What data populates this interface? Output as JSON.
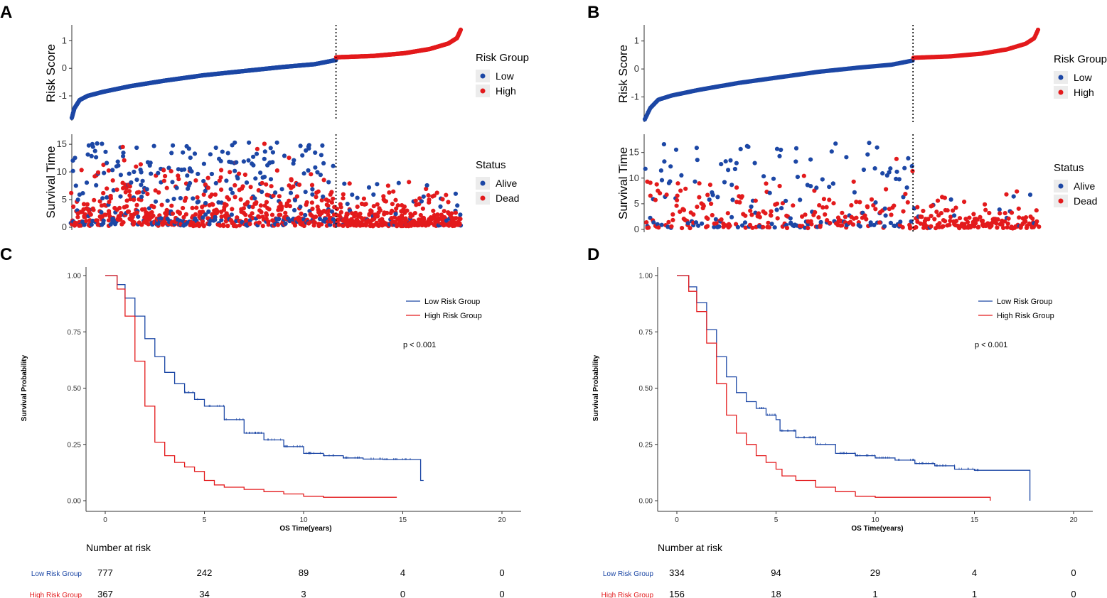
{
  "colors": {
    "low": "#1c47a5",
    "high": "#e31a1c",
    "axis": "#333333"
  },
  "chart_data": [
    {
      "panel": "A",
      "type": "scatter",
      "risk_plot": {
        "ylabel": "Risk Score",
        "yticks": [
          "1",
          "0",
          "-1"
        ],
        "ylim": [
          -1.8,
          1.45
        ],
        "low_n": 777,
        "high_n": 367,
        "low_quantiles": [
          [
            0,
            -1.8
          ],
          [
            0.01,
            -1.45
          ],
          [
            0.03,
            -1.15
          ],
          [
            0.06,
            -1.0
          ],
          [
            0.12,
            -0.85
          ],
          [
            0.22,
            -0.65
          ],
          [
            0.35,
            -0.45
          ],
          [
            0.5,
            -0.25
          ],
          [
            0.65,
            -0.1
          ],
          [
            0.8,
            0.05
          ],
          [
            0.92,
            0.15
          ],
          [
            1,
            0.3
          ]
        ],
        "high_quantiles": [
          [
            0,
            0.4
          ],
          [
            0.3,
            0.45
          ],
          [
            0.55,
            0.55
          ],
          [
            0.75,
            0.7
          ],
          [
            0.9,
            0.9
          ],
          [
            0.97,
            1.1
          ],
          [
            1,
            1.4
          ]
        ],
        "legend_title": "Risk Group",
        "legend": [
          "Low",
          "High"
        ]
      },
      "survival_plot": {
        "ylabel": "Survival Time",
        "yticks": [
          "15",
          "10",
          "5",
          "0"
        ],
        "ylim": [
          0,
          16.3
        ],
        "legend_title": "Status",
        "legend": [
          "Alive",
          "Dead"
        ]
      }
    },
    {
      "panel": "B",
      "type": "scatter",
      "risk_plot": {
        "ylabel": "Risk Score",
        "yticks": [
          "1",
          "0",
          "-1"
        ],
        "ylim": [
          -1.8,
          1.45
        ],
        "low_n": 334,
        "high_n": 156,
        "low_quantiles": [
          [
            0,
            -1.8
          ],
          [
            0.02,
            -1.4
          ],
          [
            0.05,
            -1.1
          ],
          [
            0.1,
            -0.95
          ],
          [
            0.2,
            -0.75
          ],
          [
            0.35,
            -0.5
          ],
          [
            0.5,
            -0.3
          ],
          [
            0.65,
            -0.1
          ],
          [
            0.8,
            0.05
          ],
          [
            0.92,
            0.15
          ],
          [
            1,
            0.3
          ]
        ],
        "high_quantiles": [
          [
            0,
            0.4
          ],
          [
            0.3,
            0.45
          ],
          [
            0.55,
            0.55
          ],
          [
            0.75,
            0.7
          ],
          [
            0.9,
            0.9
          ],
          [
            0.97,
            1.1
          ],
          [
            1,
            1.4
          ]
        ],
        "legend_title": "Risk Group",
        "legend": [
          "Low",
          "High"
        ]
      },
      "survival_plot": {
        "ylabel": "Survival Time",
        "yticks": [
          "15",
          "10",
          "5",
          "0"
        ],
        "ylim": [
          0,
          18
        ],
        "legend_title": "Status",
        "legend": [
          "Alive",
          "Dead"
        ]
      }
    },
    {
      "panel": "C",
      "type": "line",
      "xlabel": "OS Time(years)",
      "ylabel": "Survival Probability",
      "xlim": [
        0,
        20
      ],
      "ylim": [
        0,
        1
      ],
      "xticks": [
        "0",
        "5",
        "10",
        "15",
        "20"
      ],
      "yticks": [
        "0.00",
        "0.25",
        "0.50",
        "0.75",
        "1.00"
      ],
      "series": [
        {
          "name": "Low Risk Group",
          "points": [
            [
              0,
              1
            ],
            [
              0.3,
              1
            ],
            [
              0.6,
              0.96
            ],
            [
              1,
              0.9
            ],
            [
              1.5,
              0.82
            ],
            [
              2,
              0.72
            ],
            [
              2.5,
              0.64
            ],
            [
              3,
              0.57
            ],
            [
              3.5,
              0.52
            ],
            [
              4,
              0.48
            ],
            [
              4.5,
              0.45
            ],
            [
              5,
              0.42
            ],
            [
              6,
              0.36
            ],
            [
              7,
              0.3
            ],
            [
              8,
              0.27
            ],
            [
              9,
              0.24
            ],
            [
              10,
              0.21
            ],
            [
              11,
              0.2
            ],
            [
              12,
              0.19
            ],
            [
              13,
              0.185
            ],
            [
              14,
              0.183
            ],
            [
              15.9,
              0.18
            ],
            [
              15.9,
              0.09
            ],
            [
              16.05,
              0.09
            ]
          ]
        },
        {
          "name": "High Risk Group",
          "points": [
            [
              0,
              1
            ],
            [
              0.3,
              1
            ],
            [
              0.6,
              0.94
            ],
            [
              1,
              0.82
            ],
            [
              1.5,
              0.62
            ],
            [
              2,
              0.42
            ],
            [
              2.5,
              0.26
            ],
            [
              3,
              0.2
            ],
            [
              3.5,
              0.17
            ],
            [
              4,
              0.15
            ],
            [
              4.5,
              0.13
            ],
            [
              5,
              0.09
            ],
            [
              5.5,
              0.07
            ],
            [
              6,
              0.06
            ],
            [
              7,
              0.05
            ],
            [
              8,
              0.04
            ],
            [
              9,
              0.03
            ],
            [
              10,
              0.02
            ],
            [
              11,
              0.015
            ],
            [
              14.7,
              0.015
            ]
          ]
        }
      ],
      "legend": [
        "Low Risk Group",
        "High Risk Group"
      ],
      "annotation": "p < 0.001",
      "risk_table": {
        "title": "Number at risk",
        "times": [
          0,
          5,
          10,
          15,
          20
        ],
        "rows": [
          {
            "label": "Low Risk Group",
            "values": [
              "777",
              "242",
              "89",
              "4",
              "0"
            ]
          },
          {
            "label": "High Risk Group",
            "values": [
              "367",
              "34",
              "3",
              "0",
              "0"
            ]
          }
        ]
      }
    },
    {
      "panel": "D",
      "type": "line",
      "xlabel": "OS Time(years)",
      "ylabel": "Survival Probability",
      "xlim": [
        0,
        20
      ],
      "ylim": [
        0,
        1
      ],
      "xticks": [
        "0",
        "5",
        "10",
        "15",
        "20"
      ],
      "yticks": [
        "0.00",
        "0.25",
        "0.50",
        "0.75",
        "1.00"
      ],
      "series": [
        {
          "name": "Low Risk Group",
          "points": [
            [
              0,
              1
            ],
            [
              0.3,
              1
            ],
            [
              0.6,
              0.95
            ],
            [
              1,
              0.88
            ],
            [
              1.5,
              0.76
            ],
            [
              2,
              0.64
            ],
            [
              2.5,
              0.55
            ],
            [
              3,
              0.48
            ],
            [
              3.5,
              0.44
            ],
            [
              4,
              0.41
            ],
            [
              4.5,
              0.38
            ],
            [
              5,
              0.36
            ],
            [
              5.2,
              0.31
            ],
            [
              6,
              0.28
            ],
            [
              7,
              0.25
            ],
            [
              8,
              0.21
            ],
            [
              9,
              0.2
            ],
            [
              10,
              0.19
            ],
            [
              11,
              0.18
            ],
            [
              12,
              0.165
            ],
            [
              13,
              0.155
            ],
            [
              14,
              0.14
            ],
            [
              15,
              0.135
            ],
            [
              17.8,
              0.135
            ],
            [
              17.8,
              0
            ]
          ]
        },
        {
          "name": "High Risk Group",
          "points": [
            [
              0,
              1
            ],
            [
              0.3,
              1
            ],
            [
              0.6,
              0.93
            ],
            [
              1,
              0.84
            ],
            [
              1.5,
              0.7
            ],
            [
              2,
              0.52
            ],
            [
              2.5,
              0.38
            ],
            [
              3,
              0.3
            ],
            [
              3.5,
              0.25
            ],
            [
              4,
              0.2
            ],
            [
              4.5,
              0.17
            ],
            [
              5,
              0.14
            ],
            [
              5.3,
              0.11
            ],
            [
              6,
              0.09
            ],
            [
              7,
              0.06
            ],
            [
              8,
              0.04
            ],
            [
              9,
              0.02
            ],
            [
              10,
              0.015
            ],
            [
              15.8,
              0.015
            ],
            [
              15.8,
              0
            ]
          ]
        }
      ],
      "legend": [
        "Low Risk Group",
        "High Risk Group"
      ],
      "annotation": "p < 0.001",
      "risk_table": {
        "title": "Number at risk",
        "times": [
          0,
          5,
          10,
          15,
          20
        ],
        "rows": [
          {
            "label": "Low Risk Group",
            "values": [
              "334",
              "94",
              "29",
              "4",
              "0"
            ]
          },
          {
            "label": "High Risk Group",
            "values": [
              "156",
              "18",
              "1",
              "1",
              "0"
            ]
          }
        ]
      }
    }
  ]
}
